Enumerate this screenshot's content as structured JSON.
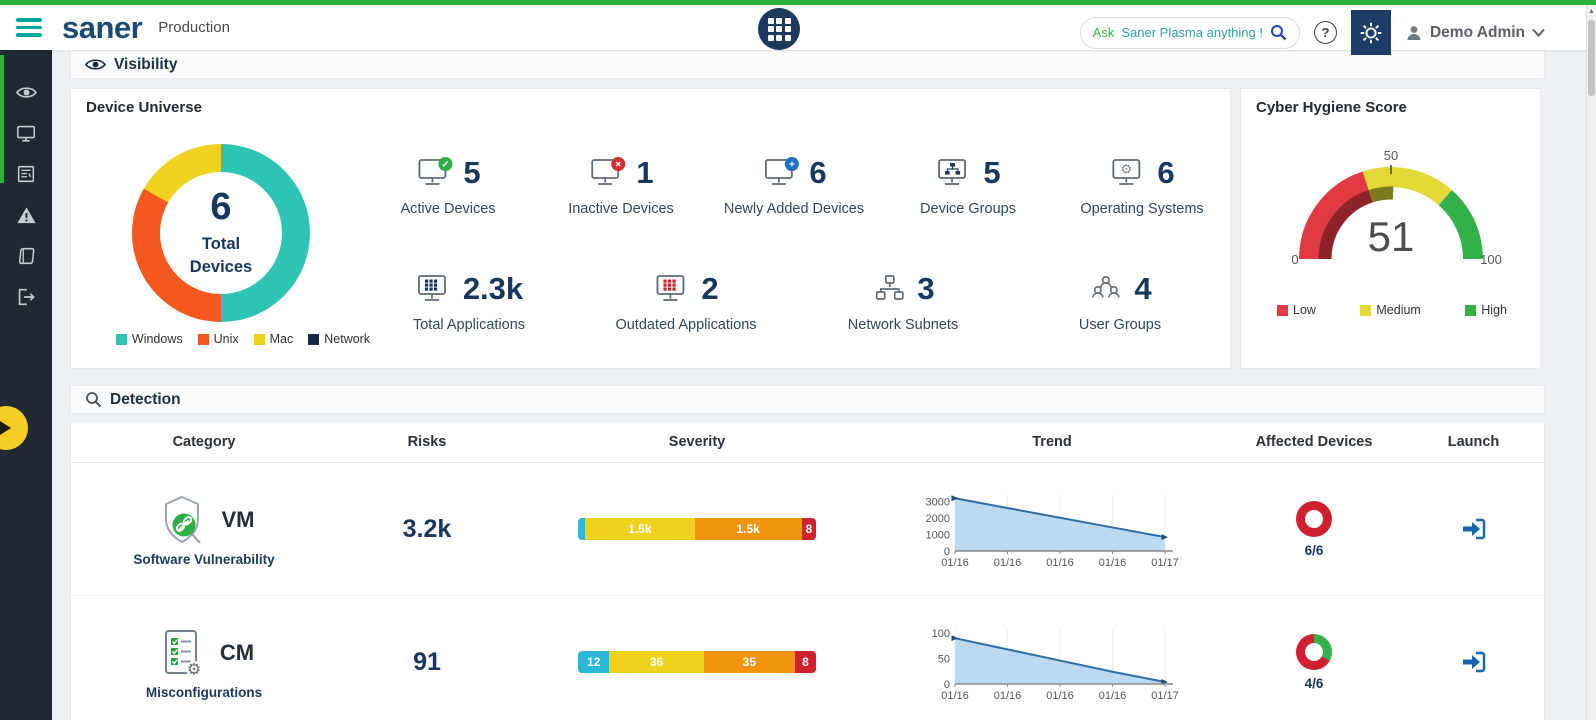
{
  "header": {
    "logo": "saner",
    "environment": "Production",
    "search": {
      "prefix": "Ask ",
      "rest": "Saner Plasma anything !"
    },
    "user_name": "Demo Admin"
  },
  "icons": {
    "menu-icon": "hamburger",
    "apps-grid-icon": "3x3-grid",
    "search-icon": "magnifier",
    "help-icon": "question-circle",
    "gear-icon": "gear",
    "user-icon": "person",
    "chevron-down-icon": "chevron-down",
    "sidebar": [
      "visibility-eye-icon",
      "devices-monitor-icon",
      "reports-list-icon",
      "alerts-warning-icon",
      "docs-book-icon",
      "logout-icon"
    ],
    "section_visibility": "eye-icon",
    "section_detection": "magnifier-icon",
    "launch-icon": "arrow-into-door"
  },
  "visibility": {
    "section_title": "Visibility",
    "device_universe": {
      "title": "Device Universe",
      "donut": {
        "total_value": "6",
        "total_label": "Total Devices",
        "segments": [
          {
            "label": "Windows",
            "pct": 50,
            "color": "#2ec4b4"
          },
          {
            "label": "Unix",
            "pct": 33.3,
            "color": "#f4581f"
          },
          {
            "label": "Mac",
            "pct": 16.7,
            "color": "#efd21d"
          },
          {
            "label": "Network",
            "pct": 0,
            "color": "#15294b"
          }
        ]
      },
      "stats_row1": [
        {
          "icon": "active-devices-icon",
          "value": "5",
          "label": "Active Devices"
        },
        {
          "icon": "inactive-devices-icon",
          "value": "1",
          "label": "Inactive Devices"
        },
        {
          "icon": "newly-added-devices-icon",
          "value": "6",
          "label": "Newly Added Devices"
        },
        {
          "icon": "device-groups-icon",
          "value": "5",
          "label": "Device Groups"
        },
        {
          "icon": "operating-systems-icon",
          "value": "6",
          "label": "Operating Systems"
        }
      ],
      "stats_row2": [
        {
          "icon": "total-applications-icon",
          "value": "2.3k",
          "label": "Total Applications"
        },
        {
          "icon": "outdated-applications-icon",
          "value": "2",
          "label": "Outdated Applications"
        },
        {
          "icon": "network-subnets-icon",
          "value": "3",
          "label": "Network Subnets"
        },
        {
          "icon": "user-groups-icon",
          "value": "4",
          "label": "User Groups"
        }
      ]
    },
    "cyber_hygiene": {
      "title": "Cyber Hygiene Score",
      "score": "51",
      "axis": {
        "min": "0",
        "mid": "50",
        "max": "100"
      },
      "zones": [
        {
          "label": "Low",
          "color": "#e03a44",
          "pct": 40
        },
        {
          "label": "Medium",
          "color": "#e3d836",
          "pct": 33
        },
        {
          "label": "High",
          "color": "#33b04a",
          "pct": 27
        }
      ],
      "progress_arc": [
        {
          "color": "#8e2329",
          "pct": 40
        },
        {
          "color": "#7f7a1f",
          "pct": 11
        }
      ]
    }
  },
  "detection": {
    "section_title": "Detection",
    "columns": [
      "Category",
      "Risks",
      "Severity",
      "Trend",
      "Affected Devices",
      "Launch"
    ],
    "rows": [
      {
        "code": "VM",
        "name": "Software Vulnerability",
        "icon": "vm-shield-icon",
        "risks": "3.2k",
        "severity": [
          {
            "label": "",
            "pct": 3,
            "color": "#2ab7d9"
          },
          {
            "label": "1.5k",
            "pct": 46,
            "color": "#efd21d"
          },
          {
            "label": "1.5k",
            "pct": 45,
            "color": "#f0930f"
          },
          {
            "label": "8",
            "pct": 6,
            "color": "#cf2030"
          }
        ],
        "trend": {
          "type": "area",
          "ymax": 3400,
          "yticks": [
            3000,
            2000,
            1000,
            0
          ],
          "x_labels": [
            "01/16",
            "01/16",
            "01/16",
            "01/16",
            "01/17"
          ],
          "values": [
            3200,
            2610,
            2020,
            1430,
            840
          ]
        },
        "affected": {
          "text": "6/6",
          "segments": [
            {
              "color": "#cf2030",
              "pct": 100
            }
          ]
        }
      },
      {
        "code": "CM",
        "name": "Misconfigurations",
        "icon": "cm-checklist-icon",
        "risks": "91",
        "severity": [
          {
            "label": "12",
            "pct": 13.2,
            "color": "#2ab7d9"
          },
          {
            "label": "36",
            "pct": 39.6,
            "color": "#efd21d"
          },
          {
            "label": "35",
            "pct": 38.4,
            "color": "#f0930f"
          },
          {
            "label": "8",
            "pct": 8.8,
            "color": "#cf2030"
          }
        ],
        "trend": {
          "type": "area",
          "ymax": 110,
          "yticks": [
            100,
            50,
            0
          ],
          "x_labels": [
            "01/16",
            "01/16",
            "01/16",
            "01/16",
            "01/17"
          ],
          "values": [
            90,
            68,
            46,
            24,
            4
          ]
        },
        "affected": {
          "text": "4/6",
          "segments": [
            {
              "color": "#35b14b",
              "pct": 33.3
            },
            {
              "color": "#cf2030",
              "pct": 66.7
            }
          ]
        }
      }
    ]
  }
}
